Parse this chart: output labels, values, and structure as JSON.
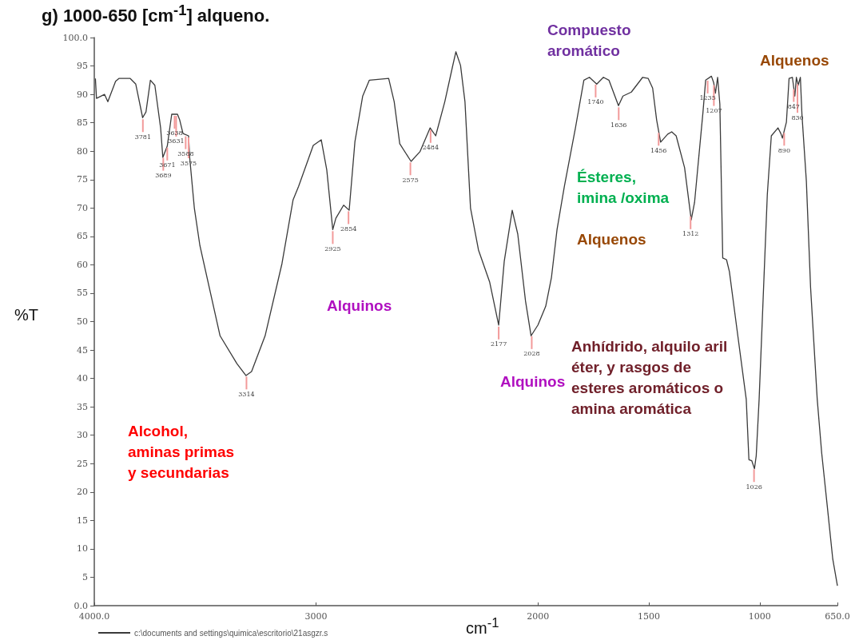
{
  "chart_data": {
    "type": "line",
    "title": "g)  1000-650 [cm$^{-1}$] alqueno.",
    "xlabel": "cm$^{-1}$",
    "ylabel": "%T",
    "xlim": [
      4000,
      650
    ],
    "xticks": [
      {
        "value": 4000,
        "label": "4000.0"
      },
      3000,
      2000,
      1500,
      1000,
      {
        "value": 650,
        "label": "650.0"
      }
    ],
    "ylim": [
      0,
      100
    ],
    "yticks": [
      {
        "value": 0,
        "label": "0.0"
      },
      5,
      10,
      15,
      20,
      25,
      30,
      35,
      40,
      45,
      50,
      55,
      60,
      65,
      70,
      75,
      80,
      85,
      90,
      95,
      {
        "value": 100,
        "label": "100.0"
      }
    ],
    "grid": false,
    "legend": "bottom left",
    "marker": "none",
    "line_style": "solid",
    "series": [
      {
        "name": "c:\\documents and settings\\quimica\\escritorio\\21asgzr.s",
        "color": "#3a3a3a",
        "x": [
          3995,
          3990,
          3954,
          3939,
          3904,
          3889,
          3838,
          3813,
          3782,
          3767,
          3747,
          3727,
          3701,
          3691,
          3671,
          3651,
          3625,
          3615,
          3600,
          3575,
          3570,
          3549,
          3524,
          3433,
          3357,
          3316,
          3291,
          3230,
          3154,
          3104,
          3079,
          3013,
          2977,
          2952,
          2925,
          2911,
          2876,
          2851,
          2825,
          2790,
          2760,
          2673,
          2648,
          2623,
          2572,
          2532,
          2486,
          2461,
          2420,
          2385,
          2370,
          2349,
          2329,
          2304,
          2268,
          2218,
          2177,
          2152,
          2116,
          2091,
          2056,
          2031,
          2000,
          1965,
          1939,
          1914,
          1881,
          1831,
          1793,
          1768,
          1735,
          1705,
          1680,
          1637,
          1617,
          1579,
          1528,
          1503,
          1483,
          1465,
          1447,
          1415,
          1397,
          1377,
          1339,
          1309,
          1294,
          1256,
          1244,
          1218,
          1208,
          1200,
          1190,
          1180,
          1167,
          1150,
          1137,
          1099,
          1061,
          1049,
          1036,
          1024,
          1016,
          1003,
          981,
          966,
          948,
          918,
          905,
          898,
          880,
          868,
          853,
          842,
          835,
          827,
          817,
          810,
          790,
          771,
          741,
          721,
          696,
          671,
          650
        ],
        "values": [
          92.8,
          89.3,
          90.0,
          88.7,
          92.3,
          92.8,
          92.8,
          91.8,
          85.9,
          86.9,
          92.5,
          91.6,
          84.1,
          78.9,
          80.9,
          86.5,
          86.5,
          85.5,
          83.1,
          82.7,
          78.9,
          70.0,
          63.4,
          47.5,
          42.6,
          40.5,
          41.2,
          47.5,
          60.2,
          71.4,
          73.8,
          81.0,
          82.0,
          76.7,
          66.2,
          68.2,
          70.5,
          69.6,
          81.7,
          89.7,
          92.5,
          92.8,
          88.7,
          81.3,
          78.2,
          79.9,
          84.1,
          82.7,
          88.7,
          94.9,
          97.5,
          95.1,
          88.7,
          70.0,
          62.6,
          57.0,
          49.4,
          60.6,
          69.6,
          65.4,
          53.6,
          47.5,
          49.4,
          52.7,
          57.8,
          66.2,
          73.8,
          84.1,
          92.5,
          93.0,
          91.8,
          93.0,
          92.5,
          88.0,
          89.7,
          90.4,
          93.0,
          92.8,
          91.1,
          85.5,
          81.6,
          83.0,
          83.4,
          82.7,
          77.1,
          67.9,
          71.0,
          86.9,
          92.5,
          93.2,
          92.1,
          90.2,
          93.0,
          88.3,
          61.2,
          60.9,
          58.8,
          47.5,
          36.3,
          25.7,
          25.5,
          24.1,
          26.4,
          36.3,
          57.8,
          72.4,
          82.7,
          84.1,
          83.1,
          82.3,
          85.1,
          92.8,
          93.0,
          89.7,
          93.0,
          91.6,
          93.0,
          86.5,
          74.7,
          56.0,
          36.3,
          26.9,
          17.6,
          8.2,
          3.5
        ]
      }
    ],
    "annotations": [
      {
        "text": "3671",
        "x": 3671,
        "y": 80.9
      },
      {
        "text": "3638",
        "x": 3638,
        "y": 86.5
      },
      {
        "text": "3781",
        "x": 3781,
        "y": 85.9
      },
      {
        "text": "3631",
        "x": 3631,
        "y": 86.5
      },
      {
        "text": "3588",
        "x": 3588,
        "y": 82.9
      },
      {
        "text": "3689",
        "x": 3689,
        "y": 79.1
      },
      {
        "text": "3575",
        "x": 3575,
        "y": 82.7
      },
      {
        "text": "3314",
        "x": 3314,
        "y": 40.6
      },
      {
        "text": "2925",
        "x": 2925,
        "y": 66.2
      },
      {
        "text": "2854",
        "x": 2854,
        "y": 69.7
      },
      {
        "text": "2575",
        "x": 2575,
        "y": 78.3
      },
      {
        "text": "2484",
        "x": 2484,
        "y": 84.0
      },
      {
        "text": "2177",
        "x": 2177,
        "y": 49.4
      },
      {
        "text": "2028",
        "x": 2028,
        "y": 47.7
      },
      {
        "text": "1740",
        "x": 1740,
        "y": 92.0
      },
      {
        "text": "1636",
        "x": 1636,
        "y": 88.0
      },
      {
        "text": "1456",
        "x": 1456,
        "y": 83.5
      },
      {
        "text": "1312",
        "x": 1312,
        "y": 68.8
      },
      {
        "text": "1235",
        "x": 1235,
        "y": 92.7
      },
      {
        "text": "1207",
        "x": 1207,
        "y": 91.9
      },
      {
        "text": "1026",
        "x": 1026,
        "y": 24.3
      },
      {
        "text": "890",
        "x": 890,
        "y": 83.5
      },
      {
        "text": "847",
        "x": 847,
        "y": 91.2
      },
      {
        "text": "830",
        "x": 830,
        "y": 92.1
      },
      "Compuesto\naromático",
      "Alquenos",
      "Ésteres,\nimina /oxima",
      "Alquenos",
      "Alquinos",
      "Alquinos",
      "Alcohol,\naminas primas\ny secundarias",
      "Anhídrido, alquilo aril\néter, y rasgos de\nesteres aromáticos o\namina aromática"
    ]
  }
}
